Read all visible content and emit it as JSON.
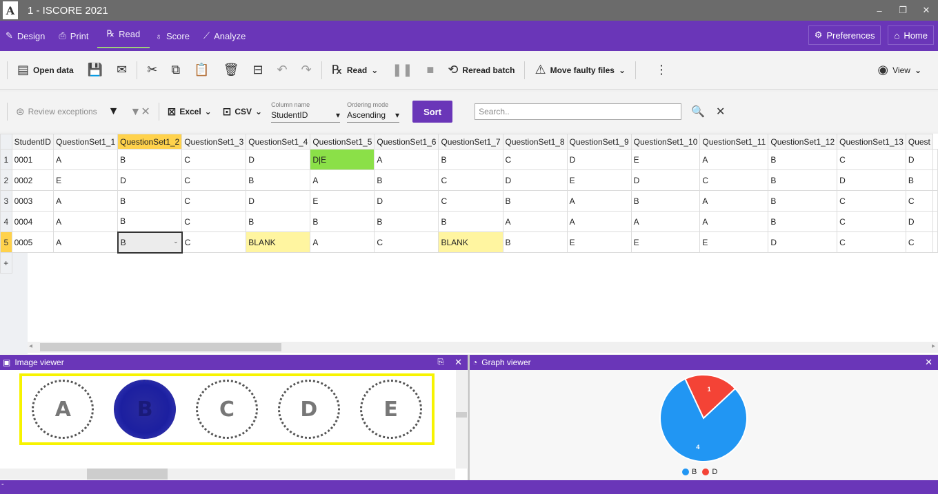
{
  "app": {
    "title": "1 - ISCORE 2021",
    "logo_text": "A",
    "window_buttons": [
      "–",
      "❐",
      "✕"
    ]
  },
  "menu": {
    "items": [
      {
        "label": "Design",
        "icon": "pencil-icon"
      },
      {
        "label": "Print",
        "icon": "printer-icon"
      },
      {
        "label": "Read",
        "icon": "read-icon"
      },
      {
        "label": "Score",
        "icon": "medal-icon"
      },
      {
        "label": "Analyze",
        "icon": "chart-line-icon"
      }
    ],
    "active": "Read",
    "preferences_label": "Preferences",
    "home_label": "Home"
  },
  "toolbar": {
    "open_data": "Open data",
    "read": "Read",
    "reread_batch": "Reread batch",
    "move_faulty": "Move faulty files",
    "view": "View"
  },
  "filterbar": {
    "review_exceptions": "Review exceptions",
    "excel": "Excel",
    "csv": "CSV",
    "column_name_label": "Column name",
    "column_name_value": "StudentID",
    "ordering_label": "Ordering mode",
    "ordering_value": "Ascending",
    "sort": "Sort",
    "search_placeholder": "Search.."
  },
  "grid": {
    "columns": [
      "StudentID",
      "QuestionSet1_1",
      "QuestionSet1_2",
      "QuestionSet1_3",
      "QuestionSet1_4",
      "QuestionSet1_5",
      "QuestionSet1_6",
      "QuestionSet1_7",
      "QuestionSet1_8",
      "QuestionSet1_9",
      "QuestionSet1_10",
      "QuestionSet1_11",
      "QuestionSet1_12",
      "QuestionSet1_13",
      "Quest"
    ],
    "rows": [
      {
        "num": "1",
        "cells": [
          "0001",
          "A",
          "B",
          "C",
          "D",
          "D|E",
          "A",
          "B",
          "C",
          "D",
          "E",
          "A",
          "B",
          "C",
          "D"
        ]
      },
      {
        "num": "2",
        "cells": [
          "0002",
          "E",
          "D",
          "C",
          "B",
          "A",
          "B",
          "C",
          "D",
          "E",
          "D",
          "C",
          "B",
          "D",
          "B"
        ]
      },
      {
        "num": "3",
        "cells": [
          "0003",
          "A",
          "B",
          "C",
          "D",
          "E",
          "D",
          "C",
          "B",
          "A",
          "B",
          "A",
          "B",
          "C",
          "C"
        ]
      },
      {
        "num": "4",
        "cells": [
          "0004",
          "A",
          "B",
          "C",
          "B",
          "B",
          "B",
          "B",
          "A",
          "A",
          "A",
          "A",
          "B",
          "C",
          "D"
        ]
      },
      {
        "num": "5",
        "cells": [
          "0005",
          "A",
          "B",
          "C",
          "BLANK",
          "A",
          "C",
          "BLANK",
          "B",
          "E",
          "E",
          "E",
          "D",
          "C",
          "C"
        ]
      }
    ],
    "add_row": "+"
  },
  "image_viewer": {
    "title": "Image viewer",
    "bubbles": [
      "A",
      "B",
      "C",
      "D",
      "E"
    ],
    "filled": "B"
  },
  "graph_viewer": {
    "title": "Graph viewer",
    "chart_data": {
      "type": "pie",
      "slices": [
        {
          "label": "B",
          "value": 4,
          "color": "#2196f3"
        },
        {
          "label": "D",
          "value": 1,
          "color": "#f44336"
        }
      ]
    }
  },
  "status": {
    "text": "-"
  }
}
